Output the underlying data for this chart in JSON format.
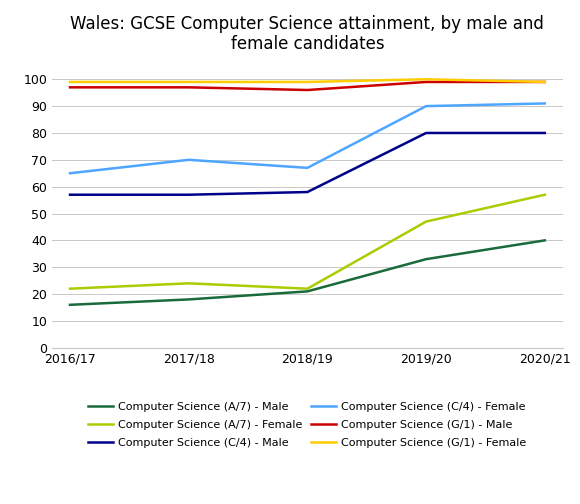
{
  "title": "Wales: GCSE Computer Science attainment, by male and\nfemale candidates",
  "x_labels": [
    "2016/17",
    "2017/18",
    "2018/19",
    "2019/20",
    "2020/21"
  ],
  "x_positions": [
    0,
    1,
    2,
    3,
    4
  ],
  "series": [
    {
      "label": "Computer Science (A/7) - Male",
      "color": "#1a6b3c",
      "values": [
        16,
        18,
        21,
        33,
        40
      ]
    },
    {
      "label": "Computer Science (A/7) - Female",
      "color": "#aacc00",
      "values": [
        22,
        24,
        22,
        47,
        57
      ]
    },
    {
      "label": "Computer Science (C/4) - Male",
      "color": "#00008b",
      "values": [
        57,
        57,
        58,
        80,
        80
      ]
    },
    {
      "label": "Computer Science (C/4) - Female",
      "color": "#4da6ff",
      "values": [
        65,
        70,
        67,
        90,
        91
      ]
    },
    {
      "label": "Computer Science (G/1) - Male",
      "color": "#cc0000",
      "values": [
        97,
        97,
        96,
        99,
        99
      ]
    },
    {
      "label": "Computer Science (G/1) - Female",
      "color": "#ffcc00",
      "values": [
        99,
        99,
        99,
        100,
        99
      ]
    }
  ],
  "ylim": [
    0,
    107
  ],
  "yticks": [
    0,
    10,
    20,
    30,
    40,
    50,
    60,
    70,
    80,
    90,
    100
  ],
  "background_color": "#ffffff",
  "grid_color": "#c8c8c8",
  "linewidth": 1.8,
  "title_fontsize": 12,
  "tick_fontsize": 9,
  "legend_fontsize": 8
}
